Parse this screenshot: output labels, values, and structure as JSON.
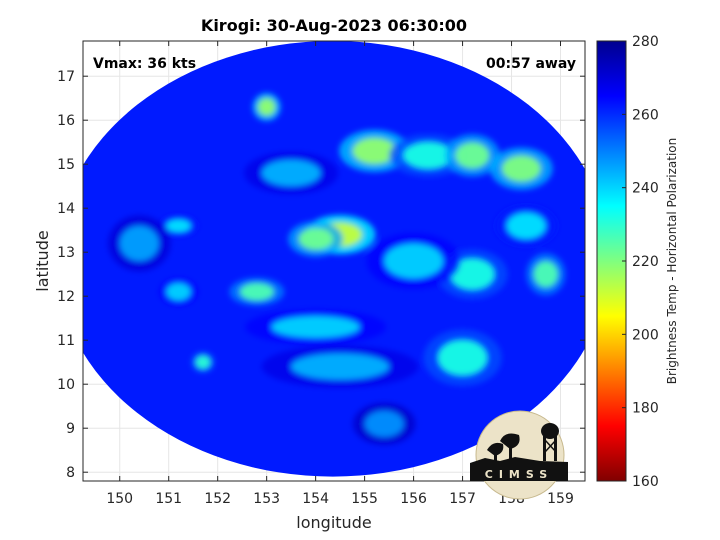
{
  "chart_data": {
    "type": "heatmap",
    "title": "Kirogi: 30-Aug-2023 06:30:00",
    "xlabel": "longitude",
    "ylabel": "latitude",
    "xlim": [
      149.25,
      159.5
    ],
    "ylim": [
      7.8,
      17.8
    ],
    "xticks": [
      150,
      151,
      152,
      153,
      154,
      155,
      156,
      157,
      158,
      159
    ],
    "yticks": [
      8,
      9,
      10,
      11,
      12,
      13,
      14,
      15,
      16,
      17
    ],
    "grid": true,
    "annotations": {
      "vmax": "Vmax: 36 kts",
      "time_offset": "00:57 away"
    },
    "swath": {
      "center": [
        154.35,
        12.85
      ],
      "radius_lon": 5.65,
      "radius_lat": 4.95
    },
    "background_value": 262,
    "features": [
      {
        "lon": 154.5,
        "lat": 13.4,
        "value": 212,
        "spread_lon": 0.45,
        "spread_lat": 0.28
      },
      {
        "lon": 154.0,
        "lat": 13.3,
        "value": 222,
        "spread_lon": 0.35,
        "spread_lat": 0.25
      },
      {
        "lon": 155.2,
        "lat": 15.3,
        "value": 218,
        "spread_lon": 0.45,
        "spread_lat": 0.3
      },
      {
        "lon": 156.3,
        "lat": 15.2,
        "value": 232,
        "spread_lon": 0.5,
        "spread_lat": 0.3
      },
      {
        "lon": 157.2,
        "lat": 15.2,
        "value": 222,
        "spread_lon": 0.35,
        "spread_lat": 0.3
      },
      {
        "lon": 158.2,
        "lat": 14.9,
        "value": 220,
        "spread_lon": 0.4,
        "spread_lat": 0.3
      },
      {
        "lon": 153.0,
        "lat": 16.3,
        "value": 218,
        "spread_lon": 0.18,
        "spread_lat": 0.2
      },
      {
        "lon": 157.2,
        "lat": 12.5,
        "value": 232,
        "spread_lon": 0.45,
        "spread_lat": 0.35
      },
      {
        "lon": 158.7,
        "lat": 12.5,
        "value": 226,
        "spread_lon": 0.25,
        "spread_lat": 0.3
      },
      {
        "lon": 156.0,
        "lat": 12.8,
        "value": 240,
        "spread_lon": 0.6,
        "spread_lat": 0.4
      },
      {
        "lon": 152.8,
        "lat": 12.1,
        "value": 226,
        "spread_lon": 0.35,
        "spread_lat": 0.2
      },
      {
        "lon": 154.0,
        "lat": 11.3,
        "value": 240,
        "spread_lon": 0.9,
        "spread_lat": 0.25
      },
      {
        "lon": 154.5,
        "lat": 10.4,
        "value": 244,
        "spread_lon": 1.0,
        "spread_lat": 0.3
      },
      {
        "lon": 157.0,
        "lat": 10.6,
        "value": 232,
        "spread_lon": 0.5,
        "spread_lat": 0.4
      },
      {
        "lon": 151.7,
        "lat": 10.5,
        "value": 230,
        "spread_lon": 0.15,
        "spread_lat": 0.15
      },
      {
        "lon": 151.2,
        "lat": 13.6,
        "value": 238,
        "spread_lon": 0.25,
        "spread_lat": 0.15
      },
      {
        "lon": 151.2,
        "lat": 12.1,
        "value": 240,
        "spread_lon": 0.25,
        "spread_lat": 0.2
      },
      {
        "lon": 153.5,
        "lat": 14.8,
        "value": 244,
        "spread_lon": 0.6,
        "spread_lat": 0.3
      },
      {
        "lon": 158.3,
        "lat": 13.6,
        "value": 238,
        "spread_lon": 0.4,
        "spread_lat": 0.3
      },
      {
        "lon": 150.4,
        "lat": 13.2,
        "value": 246,
        "spread_lon": 0.4,
        "spread_lat": 0.4
      },
      {
        "lon": 155.4,
        "lat": 9.1,
        "value": 248,
        "spread_lon": 0.4,
        "spread_lat": 0.3
      }
    ],
    "colorbar": {
      "label": "Brightness Temp - Horizontal Polarization",
      "range": [
        160,
        280
      ],
      "ticks": [
        160,
        180,
        200,
        220,
        240,
        260,
        280
      ],
      "colormap": "jet",
      "colors": [
        "#800000",
        "#ff0000",
        "#ffff00",
        "#00ffff",
        "#0000ff",
        "#00008f"
      ]
    }
  },
  "logo": {
    "text": "CIMSS"
  }
}
